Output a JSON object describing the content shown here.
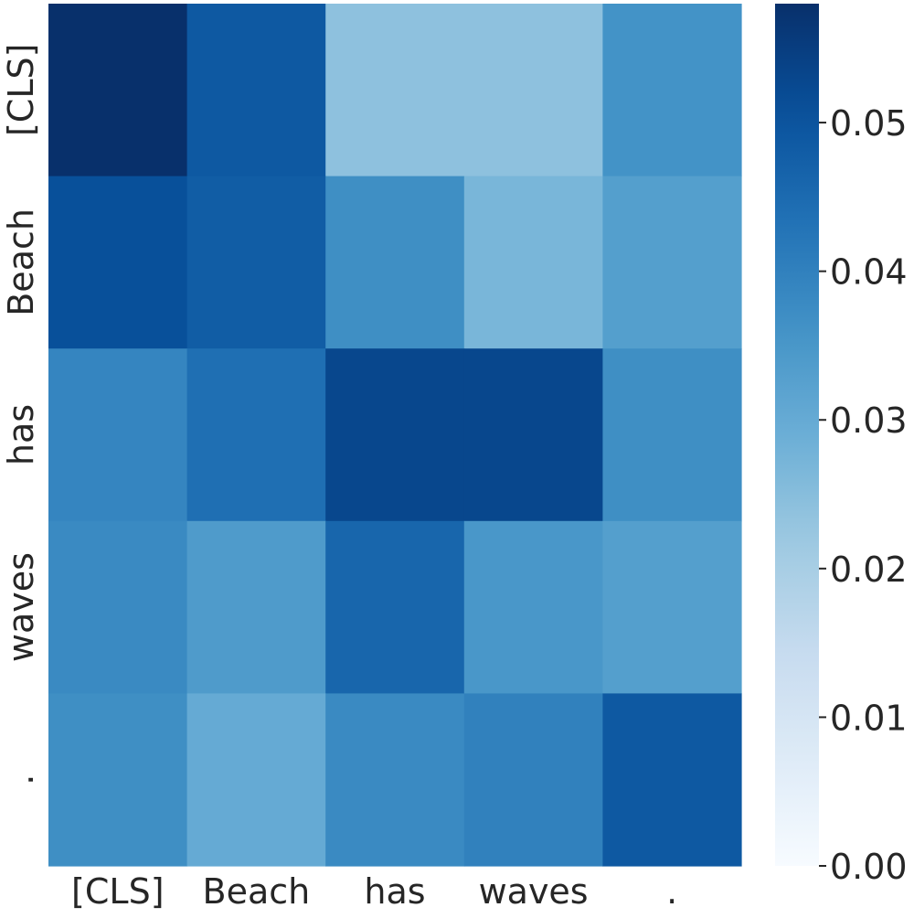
{
  "chart_data": {
    "type": "heatmap",
    "title": "",
    "xlabel": "",
    "ylabel": "",
    "x_labels": [
      "[CLS]",
      "Beach",
      "has",
      "waves",
      "."
    ],
    "y_labels": [
      "[CLS]",
      "Beach",
      "has",
      "waves",
      "."
    ],
    "values": [
      [
        0.058,
        0.049,
        0.024,
        0.024,
        0.036
      ],
      [
        0.051,
        0.048,
        0.037,
        0.027,
        0.033
      ],
      [
        0.039,
        0.044,
        0.053,
        0.053,
        0.037
      ],
      [
        0.038,
        0.034,
        0.046,
        0.035,
        0.033
      ],
      [
        0.037,
        0.03,
        0.038,
        0.04,
        0.049
      ]
    ],
    "colormap": "Blues",
    "color_range": [
      0.0,
      0.058
    ],
    "colorbar": {
      "ticks": [
        0.0,
        0.01,
        0.02,
        0.03,
        0.04,
        0.05
      ],
      "tick_labels": [
        "0.00",
        "0.01",
        "0.02",
        "0.03",
        "0.04",
        "0.05"
      ]
    },
    "grid": false,
    "legend": "colorbar-right"
  }
}
